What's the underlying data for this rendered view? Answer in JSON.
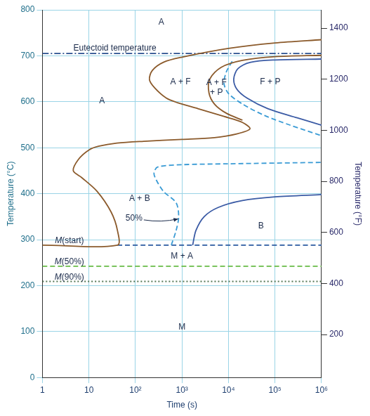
{
  "chart_data": {
    "type": "line",
    "x_label": "Time (s)",
    "y_label": "Temperature (°C)",
    "y2_label": "Temperature (°F)",
    "log": "x",
    "grid": true,
    "xlim": [
      1,
      1000000
    ],
    "xticks": [
      1,
      10,
      {
        "value": 100,
        "label": "10²"
      },
      {
        "value": 1000,
        "label": "10³"
      },
      {
        "value": 10000,
        "label": "10⁴"
      },
      {
        "value": 100000,
        "label": "10⁵"
      },
      {
        "value": 1000000,
        "label": "10⁶"
      }
    ],
    "ylim": [
      0,
      800
    ],
    "yticks": [
      0,
      100,
      200,
      300,
      400,
      500,
      600,
      700,
      800
    ],
    "y2lim": [
      32,
      1472
    ],
    "y2ticks": [
      200,
      400,
      600,
      800,
      1000,
      1200,
      1400
    ],
    "series": [
      {
        "color": "#8b5a2b",
        "line_style": "solid",
        "x": [
          1,
          41,
          41,
          30,
          15,
          7,
          4.6,
          6,
          10,
          16,
          40,
          150,
          1000,
          5000,
          15000,
          29000,
          20000,
          8000,
          2200,
          800,
          460,
          260,
          200,
          230,
          400,
          1000,
          10000,
          100000,
          1000000
        ],
        "values": [
          288,
          288,
          320,
          360,
          405,
          435,
          450,
          475,
          495,
          503,
          510,
          514,
          518,
          522,
          530,
          541,
          555,
          568,
          585,
          598,
          608,
          630,
          648,
          668,
          686,
          697,
          716,
          728,
          735
        ]
      },
      {
        "color": "#8b5a2b",
        "line_style": "solid",
        "x": [
          1000000,
          100000,
          20000,
          7000,
          4000,
          3800,
          5000,
          9000,
          20000
        ],
        "values": [
          701,
          698,
          690,
          675,
          650,
          620,
          595,
          575,
          560
        ]
      },
      {
        "color": "#3a9bd5",
        "line_style": "dashed",
        "x": [
          12000,
          9000,
          8000,
          10000,
          20000,
          60000,
          200000,
          1000000
        ],
        "values": [
          688,
          665,
          640,
          618,
          595,
          570,
          550,
          526
        ]
      },
      {
        "color": "#3b5ba5",
        "line_style": "solid",
        "x": [
          1000000,
          100000,
          30000,
          16000,
          13000,
          15000,
          25000,
          70000,
          300000,
          1000000
        ],
        "values": [
          693,
          691,
          686,
          672,
          650,
          628,
          608,
          585,
          565,
          549
        ]
      },
      {
        "color": "#3a9bd5",
        "line_style": "dashed",
        "x": [
          590,
          750,
          850,
          750,
          400,
          280,
          250,
          300,
          1000,
          10000,
          1000000
        ],
        "values": [
          288,
          320,
          350,
          380,
          405,
          430,
          445,
          458,
          463,
          465,
          468
        ]
      },
      {
        "color": "#3b5ba5",
        "line_style": "solid",
        "x": [
          1700,
          2000,
          3000,
          6000,
          20000,
          100000,
          1000000
        ],
        "values": [
          288,
          320,
          350,
          370,
          385,
          393,
          398
        ]
      },
      {
        "color": "#2a5aa0",
        "line_style": "dashed",
        "x": [
          41,
          1000000
        ],
        "values": [
          288,
          288
        ]
      },
      {
        "color": "#66bb44",
        "line_style": "dashed",
        "x": [
          1,
          1000000
        ],
        "values": [
          242,
          242
        ]
      },
      {
        "color": "#557755",
        "line_style": "dotted",
        "x": [
          1,
          1000000
        ],
        "values": [
          209,
          209
        ]
      },
      {
        "color": "#2a4f8f",
        "line_style": "dashdot",
        "x": [
          1,
          1000000
        ],
        "values": [
          705,
          705
        ]
      }
    ],
    "annotations": [
      {
        "text": "A",
        "x": 360,
        "y": 773
      },
      {
        "text": "A",
        "x": 19,
        "y": 602
      },
      {
        "text": "A + F",
        "x": 930,
        "y": 643
      },
      {
        "text": "A + F\n+ P",
        "x": 5500,
        "y": 630
      },
      {
        "text": "F + P",
        "x": 79000,
        "y": 643
      },
      {
        "text": "A + B",
        "x": 123,
        "y": 389
      },
      {
        "text": "50%",
        "x": 93,
        "y": 346,
        "arrow_to": [
          830,
          345
        ]
      },
      {
        "text": "B",
        "x": 50000,
        "y": 330
      },
      {
        "text": "M + A",
        "x": 1000,
        "y": 264
      },
      {
        "text": "M",
        "x": 1000,
        "y": 110
      },
      {
        "text": "Eutectoid temperature",
        "x": 36,
        "y": 716
      },
      {
        "text": "M(start)",
        "x": 3.8,
        "y": 298
      },
      {
        "text": "M(50%)",
        "x": 3.8,
        "y": 251
      },
      {
        "text": "M(90%)",
        "x": 3.8,
        "y": 218
      }
    ]
  }
}
